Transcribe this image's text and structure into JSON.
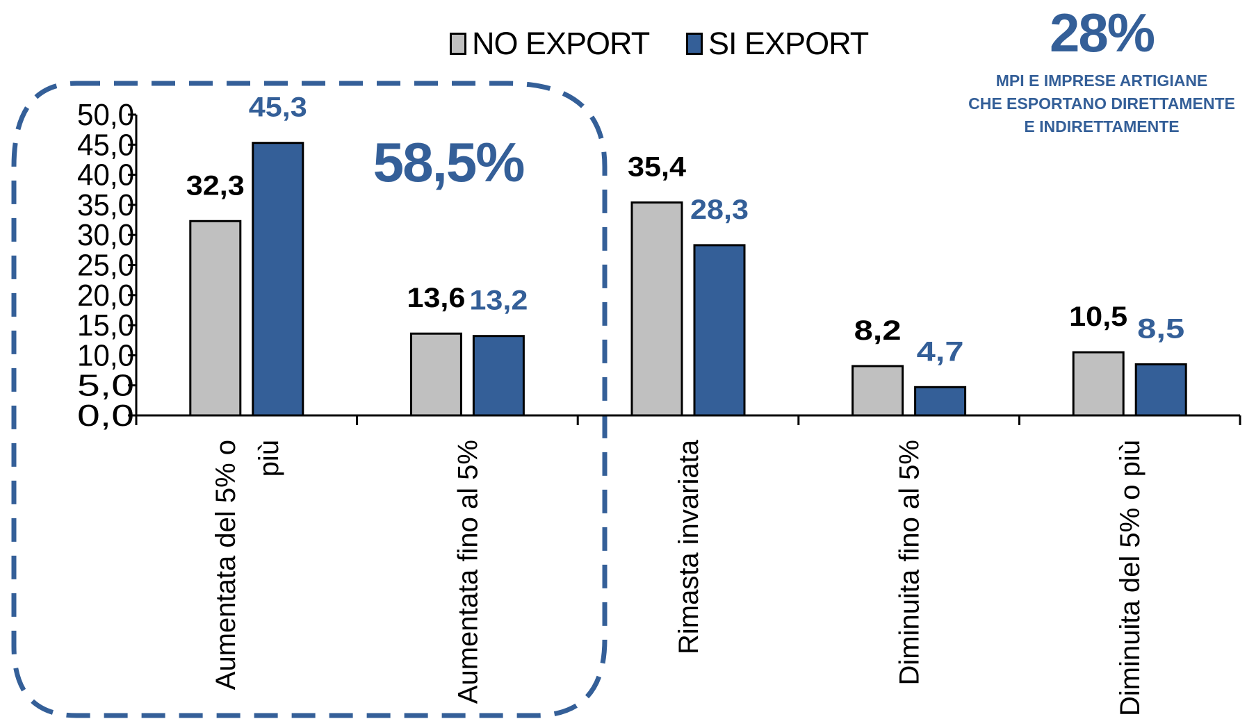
{
  "legend": {
    "items": [
      {
        "label": "NO EXPORT",
        "color": "#c0c0c0"
      },
      {
        "label": "SI EXPORT",
        "color": "#345f98"
      }
    ]
  },
  "callouts": {
    "top_right_value": "28%",
    "top_right_note": [
      "MPI E IMPRESE ARTIGIANE",
      "CHE ESPORTANO DIRETTAMENTE",
      "E INDIRETTAMENTE"
    ],
    "group_value": "58,5%"
  },
  "colors": {
    "accent": "#345f98",
    "grey": "#c0c0c0",
    "dashed_box": "#345f98"
  },
  "chart_data": {
    "type": "bar",
    "title": "",
    "xlabel": "",
    "ylabel": "",
    "ylim": [
      0,
      50
    ],
    "yticks": [
      "0,0",
      "5,0",
      "10,0",
      "15,0",
      "20,0",
      "25,0",
      "30,0",
      "35,0",
      "40,0",
      "45,0",
      "50,0"
    ],
    "categories": [
      [
        "Aumentata del 5% o",
        "più"
      ],
      [
        "Aumentata fino al 5%"
      ],
      [
        "Rimasta invariata"
      ],
      [
        "Diminuita fino al 5%"
      ],
      [
        "Diminuita del 5% o più"
      ]
    ],
    "series": [
      {
        "name": "NO EXPORT",
        "color": "#c0c0c0",
        "label_color": "#000000",
        "values": [
          32.3,
          13.6,
          35.4,
          8.2,
          10.5
        ],
        "labels": [
          "32,3",
          "13,6",
          "35,4",
          "8,2",
          "10,5"
        ]
      },
      {
        "name": "SI EXPORT",
        "color": "#345f98",
        "label_color": "#345f98",
        "values": [
          45.3,
          13.2,
          28.3,
          4.7,
          8.5
        ],
        "labels": [
          "45,3",
          "13,2",
          "28,3",
          "4,7",
          "8,5"
        ]
      }
    ],
    "grid": false,
    "legend_position": "top"
  }
}
